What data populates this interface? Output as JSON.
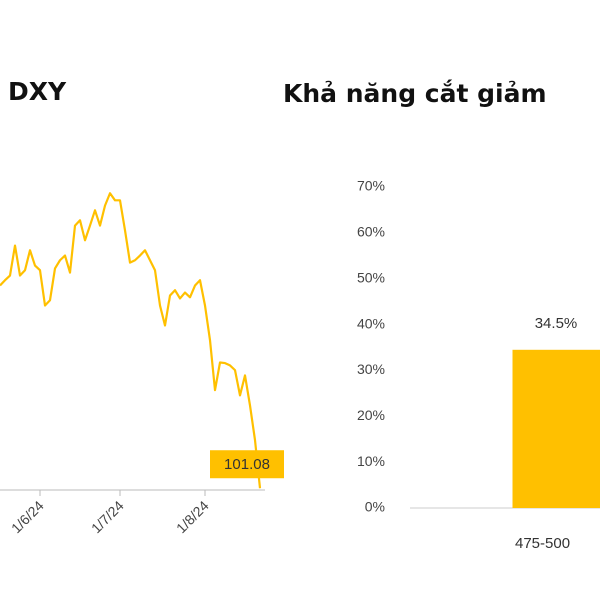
{
  "chart_data": [
    {
      "type": "line",
      "title": "DXY",
      "color": "#FFC000",
      "categories": [
        null,
        null,
        null,
        null,
        null,
        null,
        null,
        null,
        "1/6/24",
        null,
        null,
        null,
        null,
        null,
        null,
        null,
        null,
        null,
        null,
        null,
        null,
        null,
        null,
        null,
        "1/7/24",
        null,
        null,
        null,
        null,
        null,
        null,
        null,
        null,
        null,
        null,
        null,
        null,
        null,
        null,
        null,
        null,
        "1/8/24",
        null,
        null,
        null,
        null,
        null,
        null,
        null,
        null,
        null,
        null,
        null
      ],
      "values": [
        104.53,
        104.62,
        104.7,
        105.21,
        104.7,
        104.79,
        105.13,
        104.87,
        104.79,
        104.19,
        104.28,
        104.82,
        104.96,
        105.04,
        104.75,
        105.55,
        105.64,
        105.3,
        105.55,
        105.81,
        105.55,
        105.89,
        106.1,
        105.98,
        105.98,
        105.47,
        104.92,
        104.96,
        105.04,
        105.13,
        104.96,
        104.79,
        104.19,
        103.85,
        104.36,
        104.45,
        104.31,
        104.41,
        104.33,
        104.53,
        104.62,
        104.19,
        103.6,
        102.75,
        103.22,
        103.21,
        103.17,
        103.09,
        102.66,
        103.0,
        102.49,
        101.9,
        101.08
      ],
      "ylim": [
        101.05,
        107.5
      ]
    },
    {
      "type": "bar",
      "title": "Khả năng cắt giảm",
      "color": "#FFC000",
      "categories": [
        "475-500"
      ],
      "values": [
        34.5
      ],
      "value_labels": [
        "34.5%"
      ],
      "ylim": [
        0,
        70
      ],
      "yticks": [
        {
          "value": 0,
          "label": "0%"
        },
        {
          "value": 10,
          "label": "10%"
        },
        {
          "value": 20,
          "label": "20%"
        },
        {
          "value": 30,
          "label": "30%"
        },
        {
          "value": 40,
          "label": "40%"
        },
        {
          "value": 50,
          "label": "50%"
        },
        {
          "value": 60,
          "label": "60%"
        },
        {
          "value": 70,
          "label": "70%"
        }
      ]
    }
  ]
}
